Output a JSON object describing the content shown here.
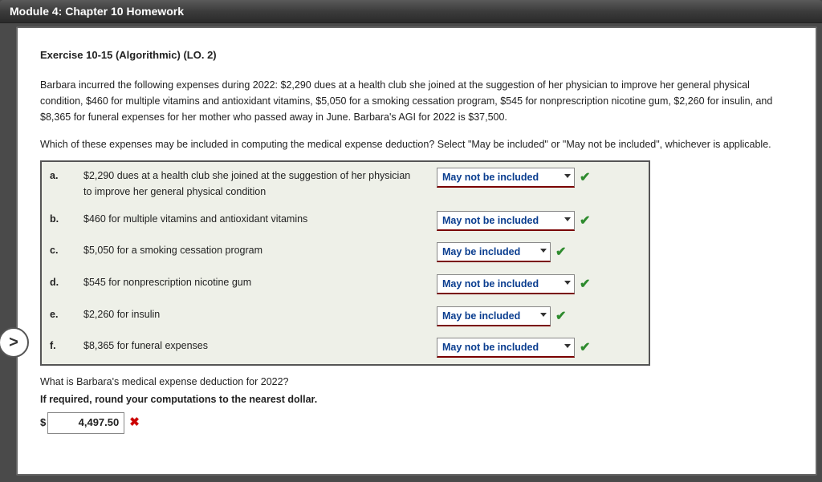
{
  "header": {
    "title": "Module 4: Chapter 10 Homework"
  },
  "exercise": {
    "title": "Exercise 10-15 (Algorithmic) (LO. 2)",
    "prompt": "Barbara incurred the following expenses during 2022: $2,290 dues at a health club she joined at the suggestion of her physician to improve her general physical condition, $460 for multiple vitamins and antioxidant vitamins, $5,050 for a smoking cessation program, $545 for nonprescription nicotine gum, $2,260 for insulin, and $8,365 for funeral expenses for her mother who passed away in June. Barbara's AGI for 2022 is $37,500.",
    "question": "Which of these expenses may be included in computing the medical expense deduction? Select \"May be included\" or \"May not be included\", whichever is applicable."
  },
  "answers": {
    "may_be_included": "May be included",
    "may_not_be_included": "May not be included"
  },
  "items": [
    {
      "letter": "a.",
      "desc": "$2,290 dues at a health club she joined at the suggestion of her physician to improve her general physical condition",
      "value": "May not be included",
      "wide": true
    },
    {
      "letter": "b.",
      "desc": "$460 for multiple vitamins and antioxidant vitamins",
      "value": "May not be included",
      "wide": true
    },
    {
      "letter": "c.",
      "desc": "$5,050 for a smoking cessation program",
      "value": "May be included",
      "wide": false
    },
    {
      "letter": "d.",
      "desc": "$545 for nonprescription nicotine gum",
      "value": "May not be included",
      "wide": true
    },
    {
      "letter": "e.",
      "desc": "$2,260 for insulin",
      "value": "May be included",
      "wide": false
    },
    {
      "letter": "f.",
      "desc": "$8,365 for funeral expenses",
      "value": "May not be included",
      "wide": true
    }
  ],
  "followup": {
    "question": "What is Barbara's medical expense deduction for 2022?",
    "note": "If required, round your computations to the nearest dollar.",
    "currency": "$",
    "value": "4,497.50",
    "correct": false
  },
  "nav": {
    "prev_glyph": ">"
  },
  "style": {
    "link_color": "#0a3d8f",
    "underline_color": "#7a0000",
    "panel_bg": "#eef0e8",
    "check_color": "#2e8b2e",
    "cross_color": "#cc0000"
  }
}
